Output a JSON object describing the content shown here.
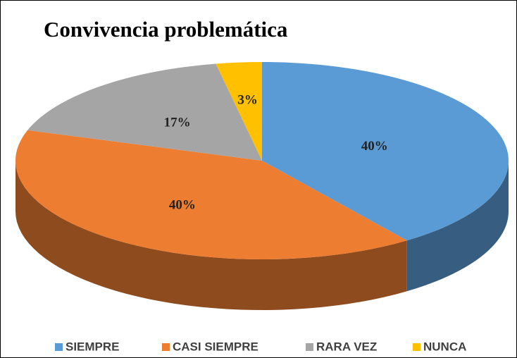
{
  "chart_data": {
    "type": "pie3d",
    "title": "Convivencia problemática",
    "categories": [
      "SIEMPRE",
      "CASI SIEMPRE",
      "RARA VEZ",
      "NUNCA"
    ],
    "values": [
      40,
      40,
      17,
      3
    ],
    "value_labels": [
      "40%",
      "40%",
      "17%",
      "3%"
    ],
    "colors": [
      "#5b9bd5",
      "#ed7d31",
      "#a5a5a5",
      "#ffc000"
    ],
    "legend": "bottom"
  }
}
